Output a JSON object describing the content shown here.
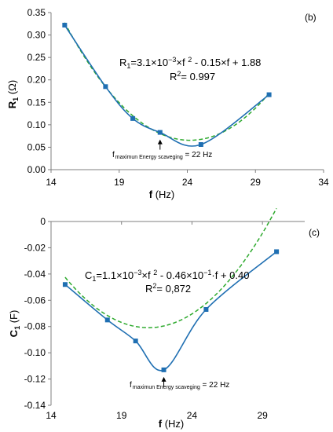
{
  "colors": {
    "series": "#1f6fb2",
    "fit": "#2eaa2e",
    "axis": "#7f7f7f",
    "text": "#000000"
  },
  "chart_data": [
    {
      "type": "line",
      "panel_label": "(b)",
      "xlabel": "f (Hz)",
      "ylabel": "R1 (Ω)",
      "ylabel_main": "R",
      "ylabel_sub": "1",
      "ylabel_unit": " (Ω)",
      "xlabel_main": "f",
      "xlabel_unit": " (Hz)",
      "xlim": [
        14,
        34
      ],
      "ylim": [
        0.0,
        0.35
      ],
      "xticks": [
        14,
        19,
        24,
        29,
        34
      ],
      "yticks": [
        0.0,
        0.05,
        0.1,
        0.15,
        0.2,
        0.25,
        0.3,
        0.35
      ],
      "ytick_labels": [
        "0.00",
        "0.05",
        "0.10",
        "0.15",
        "0.20",
        "0.25",
        "0.30",
        "0.35"
      ],
      "series": [
        {
          "kind": "measured",
          "style": "solid-markers",
          "x": [
            15,
            18,
            20,
            22,
            25,
            30
          ],
          "y": [
            0.322,
            0.185,
            0.114,
            0.083,
            0.056,
            0.167
          ]
        }
      ],
      "fit": {
        "a": 0.0031,
        "b": -0.15,
        "c": 1.88,
        "from": 15,
        "to": 30,
        "style": "dashed"
      },
      "equation": "R1=3.1×10−3×f 2 - 0.15×f + 1.88",
      "equation_parts": [
        "R",
        "1",
        "=3.1×10",
        "−3",
        "×f ",
        "2",
        " - 0.15×f + 1.88"
      ],
      "r2": "R2= 0.997",
      "r2_parts": [
        "R",
        "2",
        "= 0.997"
      ],
      "annotation": {
        "x": 22,
        "y": 0.083,
        "label_main": "f",
        "label_sub": "maximun Energy scaveging",
        "label_tail": " = 22 Hz"
      },
      "grid": false,
      "legend": "none"
    },
    {
      "type": "line",
      "panel_label": "(c)",
      "xlabel": "f (Hz)",
      "ylabel": "C1 (F)",
      "ylabel_main": "C",
      "ylabel_sub": "1",
      "ylabel_unit": " (F)",
      "xlabel_main": "f",
      "xlabel_unit": " (Hz)",
      "xlim": [
        14,
        32
      ],
      "ylim": [
        -0.14,
        0.0
      ],
      "xticks": [
        14,
        19,
        24,
        29
      ],
      "yticks": [
        -0.14,
        -0.12,
        -0.1,
        -0.08,
        -0.06,
        -0.04,
        -0.02,
        0
      ],
      "ytick_labels": [
        "-0.14",
        "-0.12",
        "-0.10",
        "-0.08",
        "-0.06",
        "-0.04",
        "-0.02",
        "0"
      ],
      "series": [
        {
          "kind": "measured",
          "style": "solid-markers",
          "x": [
            15,
            18,
            20,
            22,
            25,
            30
          ],
          "y": [
            -0.048,
            -0.075,
            -0.091,
            -0.113,
            -0.067,
            -0.023
          ]
        }
      ],
      "fit": {
        "a": 0.0011,
        "b": -0.046,
        "c": 0.4,
        "from": 15,
        "to": 30,
        "style": "dashed"
      },
      "equation": "C1=1.1×10−3×f 2 - 0.46×10−1·f + 0.40",
      "equation_parts": [
        "C",
        "1",
        "=1.1×10",
        "−3",
        "×f ",
        "2",
        " - 0.46×10",
        "−1",
        "·f + 0.40"
      ],
      "r2": "R2= 0,872",
      "r2_parts": [
        "R",
        "2",
        "= 0,872"
      ],
      "annotation": {
        "x": 22,
        "y": -0.113,
        "label_main": "f",
        "label_sub": "maximun Energy scaveging",
        "label_tail": " = 22 Hz"
      },
      "grid": false,
      "legend": "none"
    }
  ]
}
